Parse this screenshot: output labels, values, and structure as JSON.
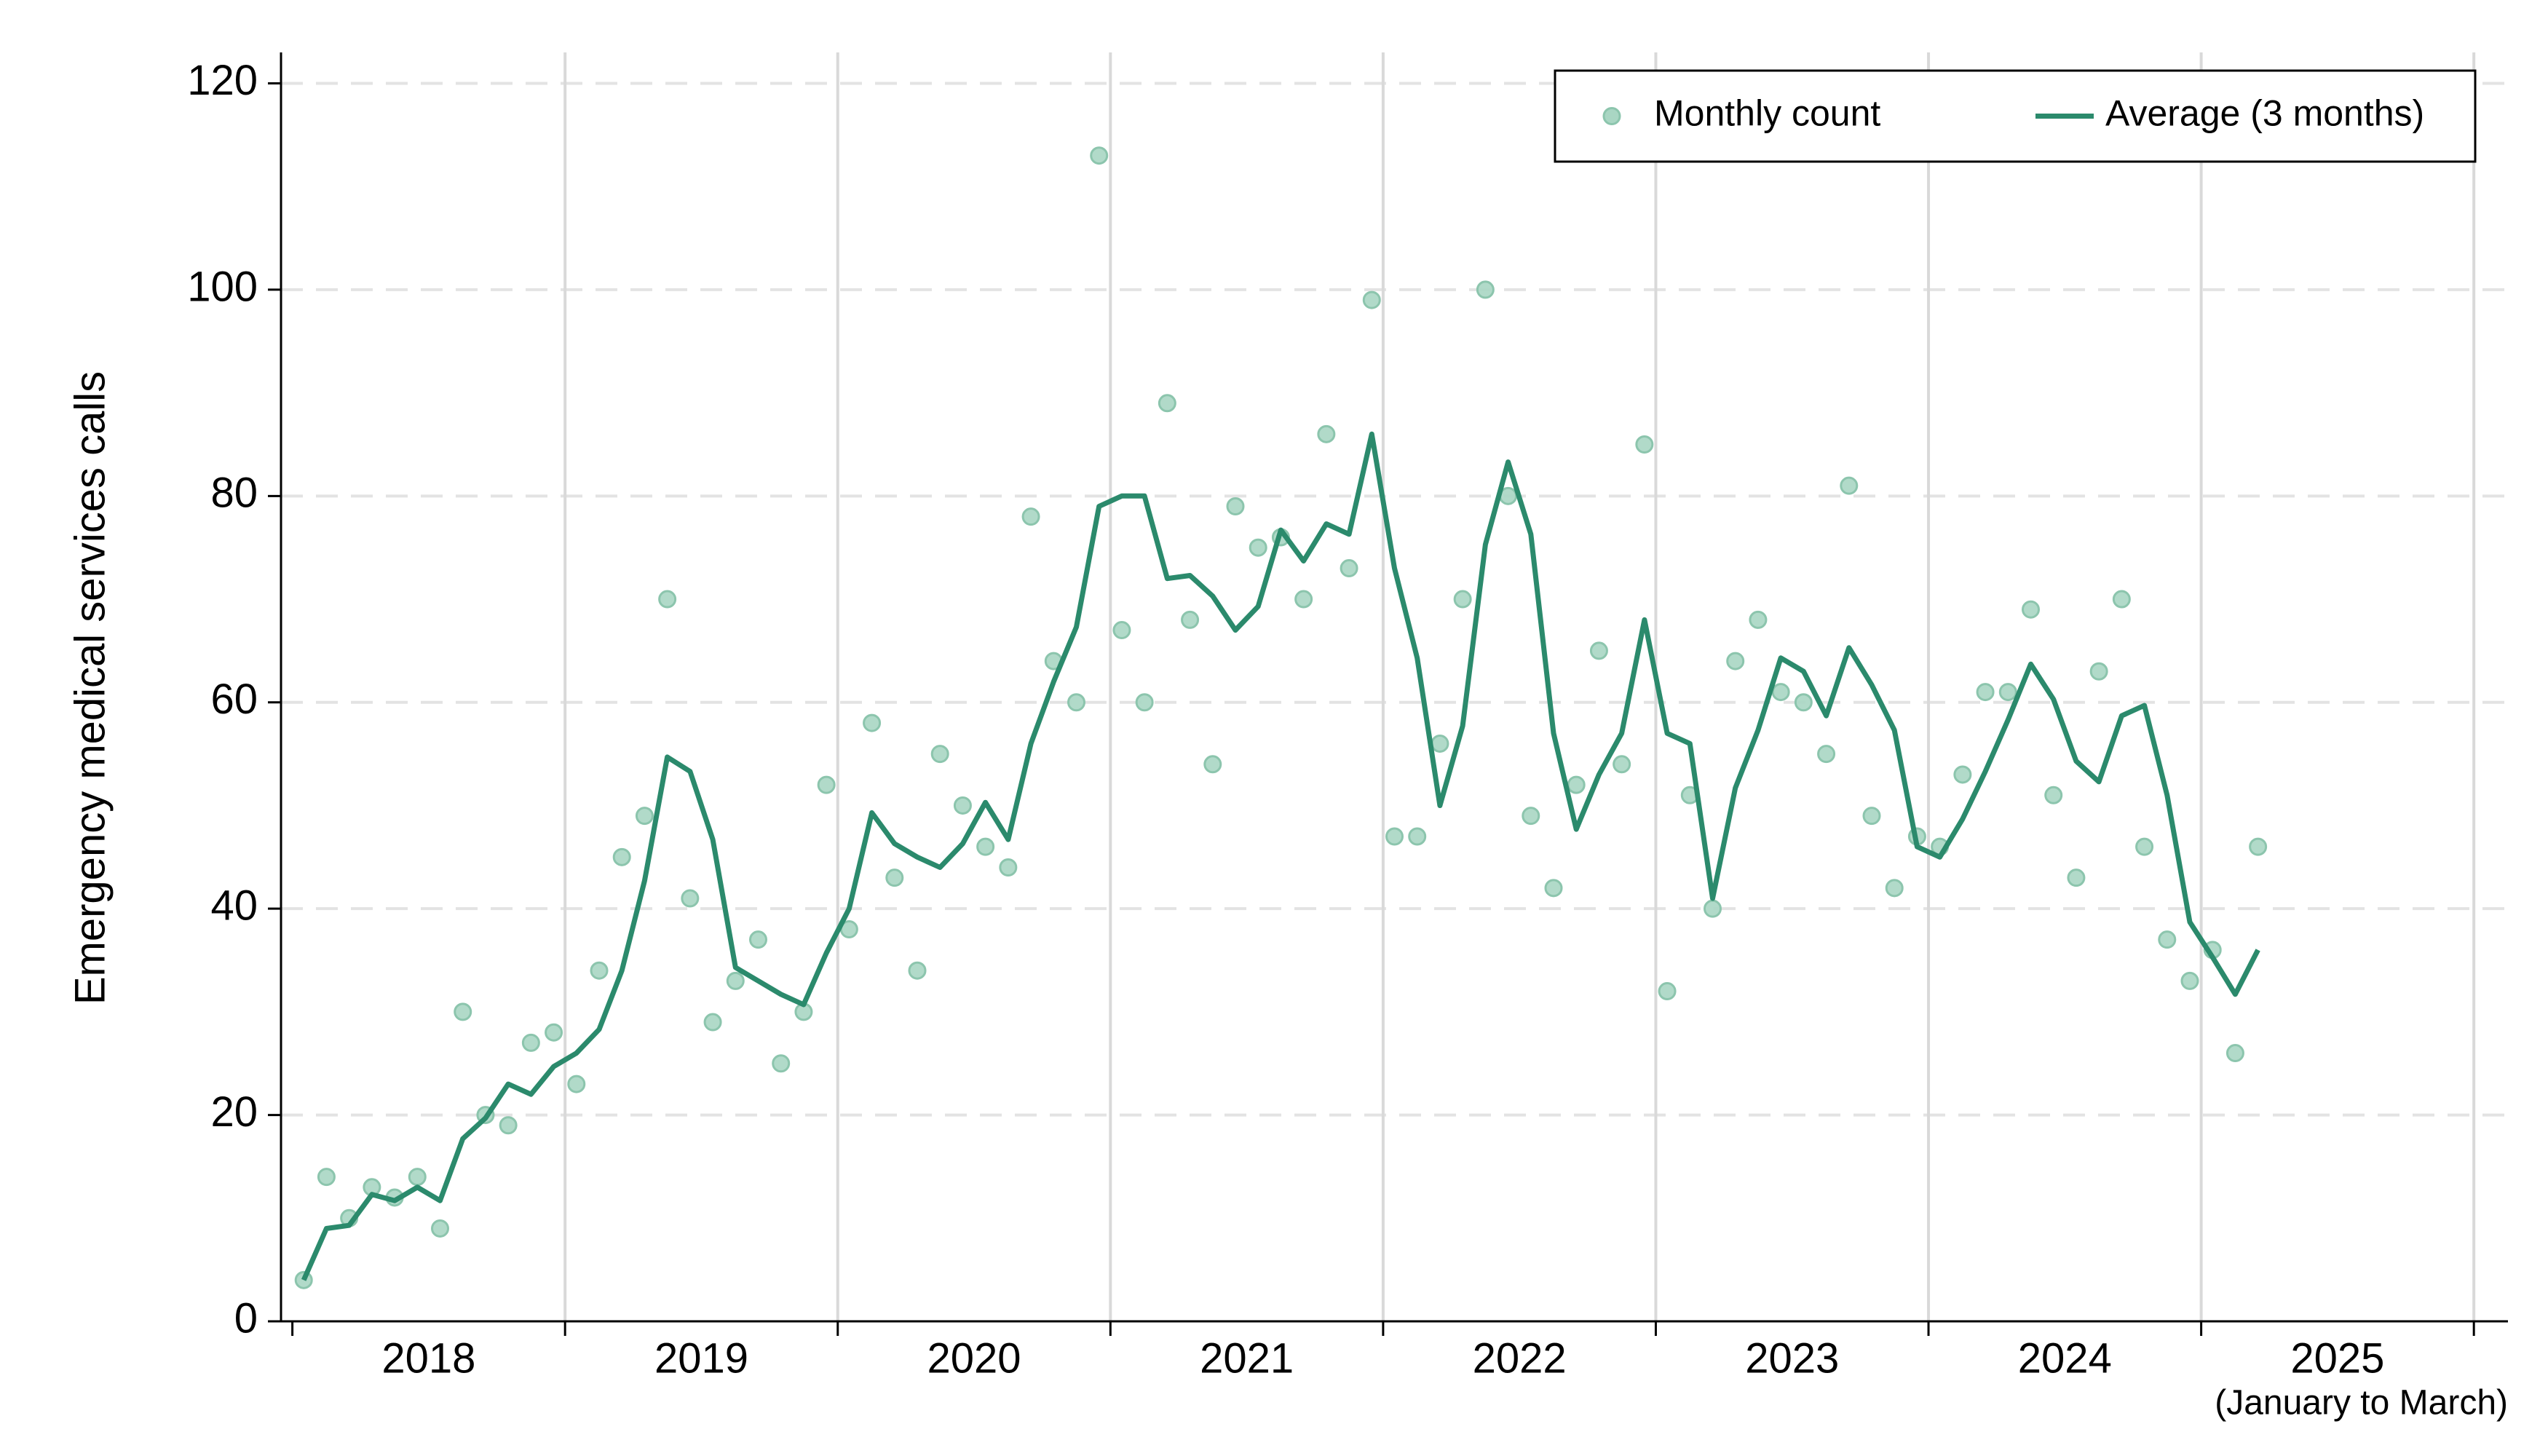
{
  "chart_data": {
    "type": "line",
    "y_label": "Emergency medical services calls",
    "annotation": "(January to March)",
    "x": [
      1,
      2,
      3,
      4,
      5,
      6,
      7,
      8,
      9,
      10,
      11,
      12,
      13,
      14,
      15,
      16,
      17,
      18,
      19,
      20,
      21,
      22,
      23,
      24,
      25,
      26,
      27,
      28,
      29,
      30,
      31,
      32,
      33,
      34,
      35,
      36,
      37,
      38,
      39,
      40,
      41,
      42,
      43,
      44,
      45,
      46,
      47,
      48,
      49,
      50,
      51,
      52,
      53,
      54,
      55,
      56,
      57,
      58,
      59,
      60,
      61,
      62,
      63,
      64,
      65,
      66,
      67,
      68,
      69,
      70,
      71,
      72,
      73,
      74,
      75,
      76,
      77,
      78,
      79,
      80,
      81,
      82,
      83,
      84,
      85,
      86,
      87
    ],
    "xlim": [
      0,
      98
    ],
    "xticks": [
      {
        "value": 6.5,
        "label": "2018"
      },
      {
        "value": 18.5,
        "label": "2019"
      },
      {
        "value": 30.5,
        "label": "2020"
      },
      {
        "value": 42.5,
        "label": "2021"
      },
      {
        "value": 54.5,
        "label": "2022"
      },
      {
        "value": 66.5,
        "label": "2023"
      },
      {
        "value": 78.5,
        "label": "2024"
      },
      {
        "value": 90.5,
        "label": "2025"
      }
    ],
    "x_boundaries": [
      0.5,
      12.5,
      24.5,
      36.5,
      48.5,
      60.5,
      72.5,
      84.5,
      96.5
    ],
    "ylim": [
      0,
      123
    ],
    "yticks": [
      0,
      20,
      40,
      60,
      80,
      100,
      120
    ],
    "grid": true,
    "legend": "top-right",
    "series": [
      {
        "name": "Monthly count",
        "mode": "markers",
        "color": "#a9d6c3",
        "values": [
          4,
          14,
          10,
          13,
          12,
          14,
          9,
          30,
          20,
          19,
          27,
          28,
          23,
          34,
          45,
          49,
          70,
          41,
          29,
          33,
          37,
          25,
          30,
          52,
          38,
          58,
          43,
          34,
          55,
          50,
          46,
          44,
          78,
          64,
          60,
          113,
          67,
          60,
          89,
          68,
          54,
          79,
          75,
          76,
          70,
          86,
          73,
          99,
          47,
          47,
          56,
          70,
          100,
          80,
          49,
          42,
          52,
          65,
          54,
          85,
          32,
          51,
          40,
          64,
          68,
          61,
          60,
          55,
          81,
          49,
          42,
          47,
          46,
          53,
          61,
          61,
          69,
          51,
          43,
          63,
          70,
          46,
          37,
          33,
          36,
          26,
          46
        ]
      },
      {
        "name": "Average (3 months)",
        "mode": "line",
        "color": "#2b8a6c",
        "values": [
          4,
          9,
          9.3,
          12.3,
          11.7,
          13,
          11.7,
          17.7,
          19.7,
          23,
          22,
          24.7,
          26,
          28.3,
          34,
          42.7,
          54.7,
          53.3,
          46.7,
          34.3,
          33,
          31.7,
          30.7,
          35.7,
          40,
          49.3,
          46.3,
          45,
          44,
          46.3,
          50.3,
          46.7,
          56,
          62,
          67.3,
          79,
          80,
          80,
          72,
          72.3,
          70.3,
          67,
          69.3,
          76.7,
          73.7,
          77.3,
          76.3,
          86,
          73,
          64.3,
          50,
          57.7,
          75.3,
          83.3,
          76.3,
          57,
          47.7,
          53,
          57,
          68,
          57,
          56,
          41,
          51.7,
          57.3,
          64.3,
          63,
          58.7,
          65.3,
          61.7,
          57.3,
          46,
          45,
          48.7,
          53.3,
          58.3,
          63.7,
          60.3,
          54.3,
          52.3,
          58.7,
          59.7,
          51,
          38.7,
          35.3,
          31.7,
          36
        ]
      }
    ]
  }
}
